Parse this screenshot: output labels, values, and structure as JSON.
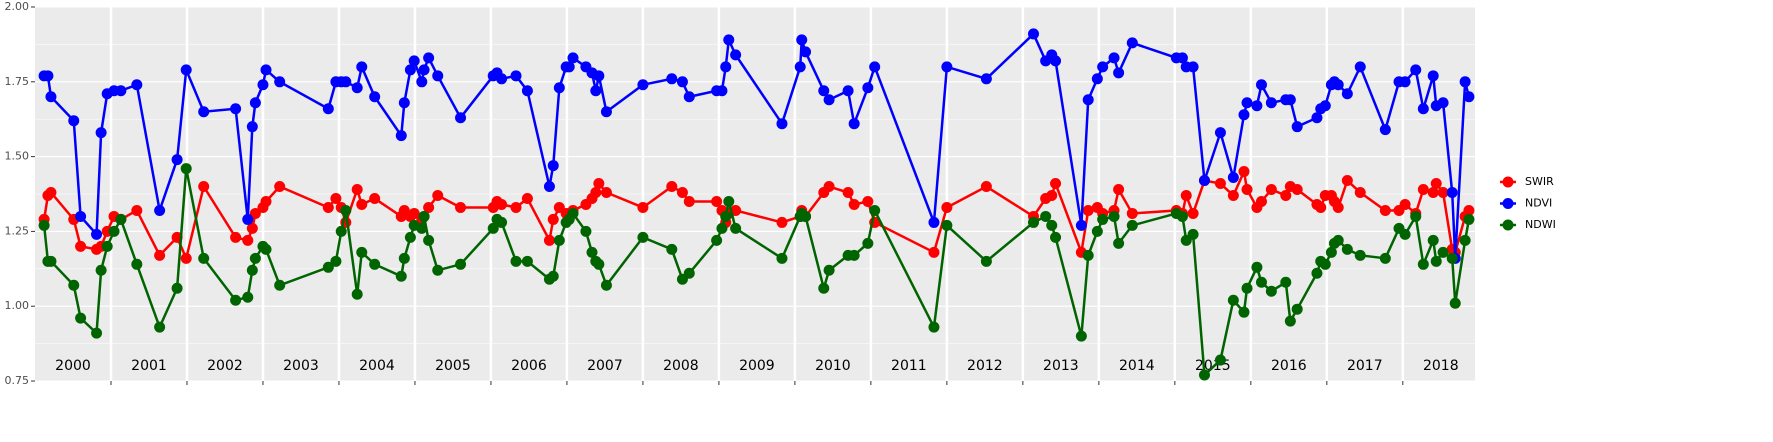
{
  "chart_data": {
    "type": "line",
    "x": [
      2000.12,
      2000.17,
      2000.21,
      2000.51,
      2000.6,
      2000.81,
      2000.87,
      2000.95,
      2001.04,
      2001.13,
      2001.34,
      2001.64,
      2001.87,
      2001.99,
      2002.22,
      2002.64,
      2002.8,
      2002.86,
      2002.9,
      2003.0,
      2003.04,
      2003.22,
      2003.86,
      2003.96,
      2004.03,
      2004.09,
      2004.24,
      2004.3,
      2004.47,
      2004.82,
      2004.86,
      2004.94,
      2004.99,
      2005.09,
      2005.12,
      2005.18,
      2005.3,
      2005.6,
      2006.03,
      2006.08,
      2006.14,
      2006.33,
      2006.48,
      2006.77,
      2006.82,
      2006.9,
      2006.99,
      2007.03,
      2007.08,
      2007.25,
      2007.33,
      2007.38,
      2007.42,
      2007.52,
      2008.0,
      2008.38,
      2008.52,
      2008.61,
      2008.97,
      2009.04,
      2009.09,
      2009.13,
      2009.22,
      2009.83,
      2010.07,
      2010.09,
      2010.14,
      2010.38,
      2010.45,
      2010.7,
      2010.78,
      2010.96,
      2011.05,
      2011.83,
      2012.0,
      2012.52,
      2013.14,
      2013.3,
      2013.38,
      2013.43,
      2013.77,
      2013.86,
      2013.98,
      2014.05,
      2014.2,
      2014.26,
      2014.44,
      2015.02,
      2015.1,
      2015.15,
      2015.24,
      2015.39,
      2015.6,
      2015.77,
      2015.91,
      2015.95,
      2016.08,
      2016.14,
      2016.27,
      2016.46,
      2016.52,
      2016.61,
      2016.87,
      2016.92,
      2016.98,
      2017.06,
      2017.1,
      2017.15,
      2017.27,
      2017.44,
      2017.77,
      2017.95,
      2018.03,
      2018.17,
      2018.27,
      2018.4,
      2018.44,
      2018.53,
      2018.65,
      2018.69,
      2018.82,
      2018.87
    ],
    "series": [
      {
        "name": "SWIR",
        "color": "#ff0000",
        "values": [
          1.29,
          1.37,
          1.38,
          1.29,
          1.2,
          1.19,
          1.2,
          1.25,
          1.3,
          1.29,
          1.32,
          1.17,
          1.23,
          1.16,
          1.4,
          1.23,
          1.22,
          1.26,
          1.31,
          1.33,
          1.35,
          1.4,
          1.33,
          1.36,
          1.33,
          1.28,
          1.39,
          1.34,
          1.36,
          1.3,
          1.32,
          1.3,
          1.31,
          1.29,
          1.3,
          1.33,
          1.37,
          1.33,
          1.33,
          1.35,
          1.34,
          1.33,
          1.36,
          1.22,
          1.29,
          1.33,
          1.31,
          1.31,
          1.32,
          1.34,
          1.36,
          1.38,
          1.41,
          1.38,
          1.33,
          1.4,
          1.38,
          1.35,
          1.35,
          1.32,
          1.28,
          1.31,
          1.32,
          1.28,
          1.3,
          1.32,
          1.3,
          1.38,
          1.4,
          1.38,
          1.34,
          1.35,
          1.28,
          1.18,
          1.33,
          1.4,
          1.3,
          1.36,
          1.37,
          1.41,
          1.18,
          1.32,
          1.33,
          1.31,
          1.32,
          1.39,
          1.31,
          1.32,
          1.31,
          1.37,
          1.31,
          1.42,
          1.41,
          1.37,
          1.45,
          1.39,
          1.33,
          1.35,
          1.39,
          1.37,
          1.4,
          1.39,
          1.34,
          1.33,
          1.37,
          1.37,
          1.35,
          1.33,
          1.42,
          1.38,
          1.32,
          1.32,
          1.34,
          1.31,
          1.39,
          1.38,
          1.41,
          1.38,
          1.19,
          1.18,
          1.3,
          1.32
        ]
      },
      {
        "name": "NDVI",
        "color": "#0000ff",
        "values": [
          1.77,
          1.77,
          1.7,
          1.62,
          1.3,
          1.24,
          1.58,
          1.71,
          1.72,
          1.72,
          1.74,
          1.32,
          1.49,
          1.79,
          1.65,
          1.66,
          1.29,
          1.6,
          1.68,
          1.74,
          1.79,
          1.75,
          1.66,
          1.75,
          1.75,
          1.75,
          1.73,
          1.8,
          1.7,
          1.57,
          1.68,
          1.79,
          1.82,
          1.75,
          1.79,
          1.83,
          1.77,
          1.63,
          1.77,
          1.78,
          1.76,
          1.77,
          1.72,
          1.4,
          1.47,
          1.73,
          1.8,
          1.8,
          1.83,
          1.8,
          1.78,
          1.72,
          1.77,
          1.65,
          1.74,
          1.76,
          1.75,
          1.7,
          1.72,
          1.72,
          1.8,
          1.89,
          1.84,
          1.61,
          1.8,
          1.89,
          1.85,
          1.72,
          1.69,
          1.72,
          1.61,
          1.73,
          1.8,
          1.28,
          1.8,
          1.76,
          1.91,
          1.82,
          1.84,
          1.82,
          1.27,
          1.69,
          1.76,
          1.8,
          1.83,
          1.78,
          1.88,
          1.83,
          1.83,
          1.8,
          1.8,
          1.42,
          1.58,
          1.43,
          1.64,
          1.68,
          1.67,
          1.74,
          1.68,
          1.69,
          1.69,
          1.6,
          1.63,
          1.66,
          1.67,
          1.74,
          1.75,
          1.74,
          1.71,
          1.8,
          1.59,
          1.75,
          1.75,
          1.79,
          1.66,
          1.77,
          1.67,
          1.68,
          1.38,
          1.16,
          1.75,
          1.7
        ]
      },
      {
        "name": "NDWI",
        "color": "#006400",
        "values": [
          1.27,
          1.15,
          1.15,
          1.07,
          0.96,
          0.91,
          1.12,
          1.2,
          1.25,
          1.29,
          1.14,
          0.93,
          1.06,
          1.46,
          1.16,
          1.02,
          1.03,
          1.12,
          1.16,
          1.2,
          1.19,
          1.07,
          1.13,
          1.15,
          1.25,
          1.32,
          1.04,
          1.18,
          1.14,
          1.1,
          1.16,
          1.23,
          1.27,
          1.26,
          1.3,
          1.22,
          1.12,
          1.14,
          1.26,
          1.29,
          1.28,
          1.15,
          1.15,
          1.09,
          1.1,
          1.22,
          1.28,
          1.29,
          1.31,
          1.25,
          1.18,
          1.15,
          1.14,
          1.07,
          1.23,
          1.19,
          1.09,
          1.11,
          1.22,
          1.26,
          1.3,
          1.35,
          1.26,
          1.16,
          1.3,
          1.31,
          1.3,
          1.06,
          1.12,
          1.17,
          1.17,
          1.21,
          1.32,
          0.93,
          1.27,
          1.15,
          1.28,
          1.3,
          1.27,
          1.23,
          0.9,
          1.17,
          1.25,
          1.29,
          1.3,
          1.21,
          1.27,
          1.31,
          1.3,
          1.22,
          1.24,
          0.77,
          0.82,
          1.02,
          0.98,
          1.06,
          1.13,
          1.08,
          1.05,
          1.08,
          0.95,
          0.99,
          1.11,
          1.15,
          1.14,
          1.18,
          1.21,
          1.22,
          1.19,
          1.17,
          1.16,
          1.26,
          1.24,
          1.3,
          1.14,
          1.22,
          1.15,
          1.18,
          1.16,
          1.01,
          1.22,
          1.29
        ]
      }
    ],
    "xlim": [
      2000,
      2018.95
    ],
    "xticks": [
      {
        "value": 2000.5,
        "label": "2000"
      },
      {
        "value": 2001.5,
        "label": "2001"
      },
      {
        "value": 2002.5,
        "label": "2002"
      },
      {
        "value": 2003.5,
        "label": "2003"
      },
      {
        "value": 2004.5,
        "label": "2004"
      },
      {
        "value": 2005.5,
        "label": "2005"
      },
      {
        "value": 2006.5,
        "label": "2006"
      },
      {
        "value": 2007.5,
        "label": "2007"
      },
      {
        "value": 2008.5,
        "label": "2008"
      },
      {
        "value": 2009.5,
        "label": "2009"
      },
      {
        "value": 2010.5,
        "label": "2010"
      },
      {
        "value": 2011.5,
        "label": "2011"
      },
      {
        "value": 2012.5,
        "label": "2012"
      },
      {
        "value": 2013.5,
        "label": "2013"
      },
      {
        "value": 2014.5,
        "label": "2014"
      },
      {
        "value": 2015.5,
        "label": "2015"
      },
      {
        "value": 2016.5,
        "label": "2016"
      },
      {
        "value": 2017.5,
        "label": "2017"
      },
      {
        "value": 2018.5,
        "label": "2018"
      }
    ],
    "ylim": [
      0.75,
      2.0
    ],
    "yticks": [
      {
        "value": 0.75,
        "label": "0.75"
      },
      {
        "value": 1.0,
        "label": "1.00"
      },
      {
        "value": 1.25,
        "label": "1.25"
      },
      {
        "value": 1.5,
        "label": "1.50"
      },
      {
        "value": 1.75,
        "label": "1.75"
      },
      {
        "value": 2.0,
        "label": "2.00"
      }
    ],
    "grid": true,
    "legend": "right"
  }
}
